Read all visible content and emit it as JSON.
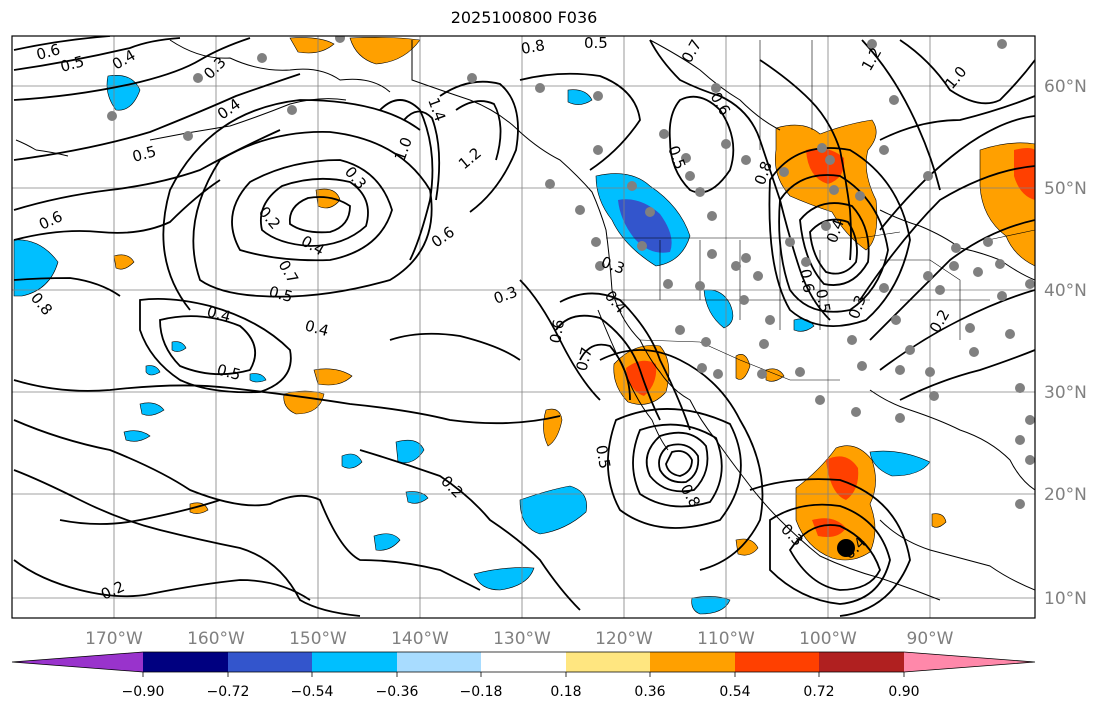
{
  "title": "2025100800 F036",
  "map": {
    "lon_labels": [
      "170°W",
      "160°W",
      "150°W",
      "140°W",
      "130°W",
      "120°W",
      "110°W",
      "100°W",
      "90°W"
    ],
    "lat_labels": [
      "60°N",
      "50°N",
      "40°N",
      "30°N",
      "20°N",
      "10°N"
    ],
    "contour_labels": [
      {
        "text": "0.6"
      },
      {
        "text": "0.5"
      },
      {
        "text": "0.4"
      },
      {
        "text": "0.3"
      },
      {
        "text": "0.4"
      },
      {
        "text": "0.5"
      },
      {
        "text": "0.6"
      },
      {
        "text": "0.8"
      },
      {
        "text": "0.5"
      },
      {
        "text": "0.7"
      },
      {
        "text": "1.4"
      },
      {
        "text": "1.0"
      },
      {
        "text": "1.2"
      },
      {
        "text": "0.3"
      },
      {
        "text": "0.2"
      },
      {
        "text": "0.4"
      },
      {
        "text": "0.6"
      },
      {
        "text": "0.7"
      },
      {
        "text": "0.5"
      },
      {
        "text": "0.4"
      },
      {
        "text": "0.4"
      },
      {
        "text": "0.5"
      },
      {
        "text": "0.8"
      },
      {
        "text": "0.3"
      },
      {
        "text": "0.4"
      },
      {
        "text": "0.6"
      },
      {
        "text": "0.7"
      },
      {
        "text": "0.3"
      },
      {
        "text": "0.5"
      },
      {
        "text": "0.8"
      },
      {
        "text": "0.2"
      },
      {
        "text": "0.2"
      },
      {
        "text": "0.3"
      },
      {
        "text": "0.4"
      },
      {
        "text": "0.5"
      },
      {
        "text": "0.6"
      },
      {
        "text": "1.2"
      },
      {
        "text": "1.0"
      },
      {
        "text": "0.8"
      },
      {
        "text": "0.6"
      },
      {
        "text": "0.5"
      },
      {
        "text": "0.4"
      },
      {
        "text": "0.3"
      },
      {
        "text": "0.2"
      }
    ]
  },
  "colorbar": {
    "ticks": [
      "−0.90",
      "−0.72",
      "−0.54",
      "−0.36",
      "−0.18",
      "0.18",
      "0.36",
      "0.54",
      "0.72",
      "0.90"
    ],
    "colors": {
      "under": "#9933cc",
      "c1": "#000080",
      "c2": "#3355cc",
      "c3": "#00bfff",
      "c4": "#a8dcff",
      "c5": "#ffffff",
      "c6": "#ffe680",
      "c7": "#ffa000",
      "c8": "#ff4000",
      "c9": "#b02020",
      "over": "#ff88aa"
    }
  },
  "colors": {
    "frame": "#000000",
    "grid": "#808080",
    "tick_label": "#808080",
    "stations": "#808080",
    "blue": "#00bfff",
    "dark_blue": "#3355cc",
    "orange": "#ffa000",
    "red_orange": "#ff4000"
  }
}
